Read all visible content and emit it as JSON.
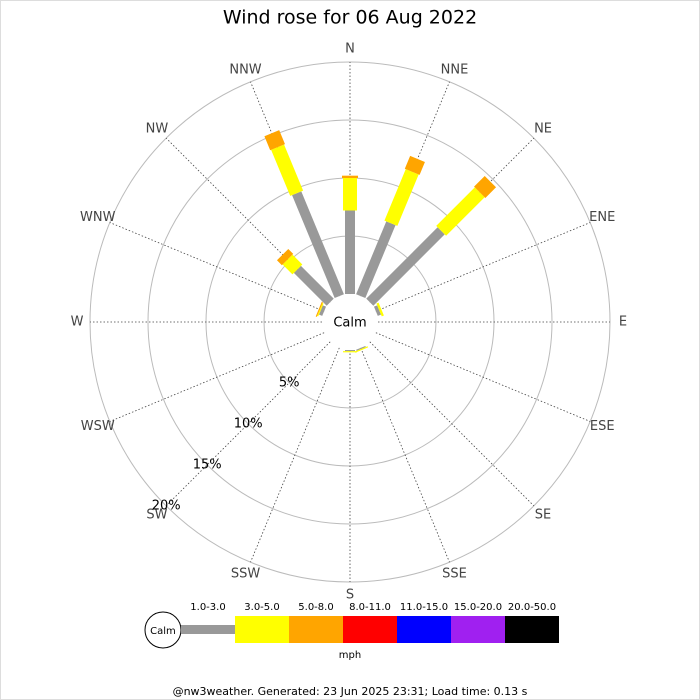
{
  "chart_data": {
    "type": "windrose",
    "title": "Wind rose for 06 Aug 2022",
    "directions": [
      "N",
      "NNE",
      "NE",
      "ENE",
      "E",
      "ESE",
      "SE",
      "SSE",
      "S",
      "SSW",
      "SW",
      "WSW",
      "W",
      "WNW",
      "NW",
      "NNW"
    ],
    "calm_label": "Calm",
    "rlim": [
      0,
      20
    ],
    "rticks": [
      {
        "value": 5,
        "label": "5%"
      },
      {
        "value": 10,
        "label": "10%"
      },
      {
        "value": 15,
        "label": "15%"
      },
      {
        "value": 20,
        "label": "20%"
      }
    ],
    "series": [
      {
        "name": "1.0-3.0",
        "color": "#999999",
        "values": [
          7.2,
          6.8,
          8.7,
          0.3,
          0,
          0,
          0,
          0.1,
          0.1,
          0,
          0,
          0,
          0,
          0.3,
          4.0,
          9.6
        ]
      },
      {
        "name": "3.0-5.0",
        "color": "#ffff00",
        "values": [
          2.8,
          4.8,
          4.7,
          0.2,
          0,
          0,
          0,
          0.1,
          0.1,
          0,
          0,
          0,
          0,
          0.1,
          1.2,
          4.3
        ]
      },
      {
        "name": "5.0-8.0",
        "color": "#ffa500",
        "values": [
          0.2,
          1.2,
          1.3,
          0,
          0,
          0,
          0,
          0,
          0,
          0,
          0,
          0,
          0,
          0.1,
          0.6,
          1.3
        ]
      },
      {
        "name": "8.0-11.0",
        "color": "#ff0000",
        "values": [
          0,
          0,
          0,
          0,
          0,
          0,
          0,
          0,
          0,
          0,
          0,
          0,
          0,
          0,
          0,
          0
        ]
      },
      {
        "name": "11.0-15.0",
        "color": "#0000ff",
        "values": [
          0,
          0,
          0,
          0,
          0,
          0,
          0,
          0,
          0,
          0,
          0,
          0,
          0,
          0,
          0,
          0
        ]
      },
      {
        "name": "15.0-20.0",
        "color": "#a020f0",
        "values": [
          0,
          0,
          0,
          0,
          0,
          0,
          0,
          0,
          0,
          0,
          0,
          0,
          0,
          0,
          0,
          0
        ]
      },
      {
        "name": "20.0-50.0",
        "color": "#000000",
        "values": [
          0,
          0,
          0,
          0,
          0,
          0,
          0,
          0,
          0,
          0,
          0,
          0,
          0,
          0,
          0,
          0
        ]
      }
    ],
    "legend_unit": "mph",
    "footer": "@nw3weather. Generated: 23 Jun 2025 23:31; Load time: 0.13 s"
  }
}
